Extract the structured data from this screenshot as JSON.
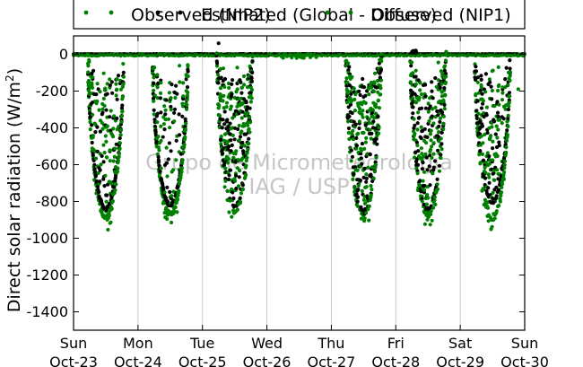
{
  "chart_data": {
    "type": "scatter",
    "title": "",
    "ylabel": "Direct solar radiation (W/m",
    "ylabel_sup": "2",
    "ylabel_close": ")",
    "xlabel": "",
    "ylim": [
      -1500,
      100
    ],
    "xlim": [
      0,
      7
    ],
    "grid": "vertical",
    "yticks": [
      0,
      -200,
      -400,
      -600,
      -800,
      -1000,
      -1200,
      -1400
    ],
    "xticks": [
      {
        "x": 0,
        "day": "Sun",
        "date": "Oct-23"
      },
      {
        "x": 1,
        "day": "Mon",
        "date": "Oct-24"
      },
      {
        "x": 2,
        "day": "Tue",
        "date": "Oct-25"
      },
      {
        "x": 3,
        "day": "Wed",
        "date": "Oct-26"
      },
      {
        "x": 4,
        "day": "Thu",
        "date": "Oct-27"
      },
      {
        "x": 5,
        "day": "Fri",
        "date": "Oct-28"
      },
      {
        "x": 6,
        "day": "Sat",
        "date": "Oct-29"
      },
      {
        "x": 7,
        "day": "Sun",
        "date": "Oct-30"
      }
    ],
    "legend_position": "top",
    "series": [
      {
        "name": "Observed (NIP2)",
        "color": "#008000"
      },
      {
        "name": "Estimated (Global - Diffuse)",
        "color": "#000000"
      },
      {
        "name": "Observed (NIP1)",
        "color": "#008000"
      }
    ],
    "days": [
      {
        "day": 0,
        "black_min": -840,
        "green_min": -890,
        "noise": 0.45
      },
      {
        "day": 1,
        "black_min": -820,
        "green_min": -870,
        "noise": 0.35
      },
      {
        "day": 2,
        "black_min": -830,
        "green_min": -850,
        "noise": 0.85
      },
      {
        "day": 3,
        "black_min": 0,
        "green_min": 0,
        "noise": 0
      },
      {
        "day": 4,
        "black_min": -860,
        "green_min": -880,
        "noise": 0.8
      },
      {
        "day": 5,
        "black_min": -840,
        "green_min": -870,
        "noise": 0.7
      },
      {
        "day": 6,
        "black_min": -800,
        "green_min": -890,
        "noise": 0.55
      }
    ],
    "watermark": [
      "Grupo de Micrometeorologia",
      "IAG / USP"
    ]
  }
}
